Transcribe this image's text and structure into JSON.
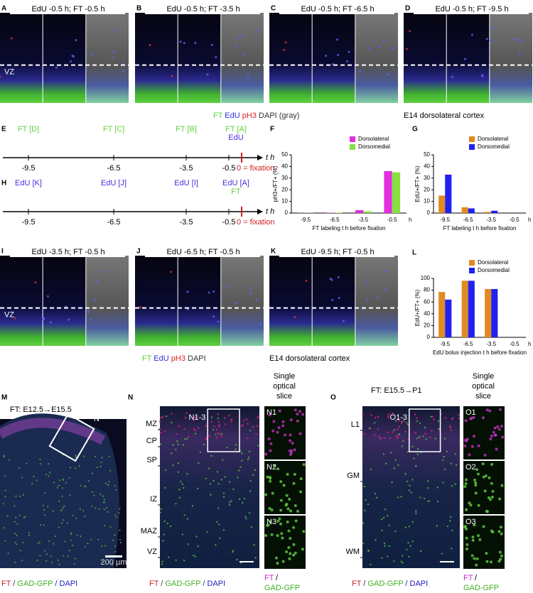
{
  "micro_rows": [
    {
      "panels": [
        {
          "letter": "A",
          "title": "EdU -0.5 h; FT -0.5 h",
          "zone": "VZ"
        },
        {
          "letter": "B",
          "title": "EdU -0.5 h; FT -3.5 h"
        },
        {
          "letter": "C",
          "title": "EdU -0.5 h; FT -6.5 h"
        },
        {
          "letter": "D",
          "title": "EdU -0.5 h; FT -9.5 h"
        }
      ],
      "legend": [
        "FT",
        "EdU",
        "pH3",
        "DAPI (gray)"
      ],
      "region": "E14 dorsolateral cortex"
    },
    {
      "panels": [
        {
          "letter": "I",
          "title": "EdU -3.5 h; FT -0.5 h",
          "zone": "VZ"
        },
        {
          "letter": "J",
          "title": "EdU -6.5 h; FT -0.5 h"
        },
        {
          "letter": "K",
          "title": "EdU -9.5 h; FT -0.5 h"
        }
      ],
      "legend": [
        "FT",
        "EdU",
        "pH3",
        "DAPI"
      ],
      "region": "E14 dorsolateral cortex"
    }
  ],
  "timelines": [
    {
      "letter": "E",
      "ticks": [
        "-9.5",
        "-6.5",
        "-3.5",
        "-0.5"
      ],
      "labels": [
        [
          "FT [D]"
        ],
        [
          "FT [C]"
        ],
        [
          "FT [B]"
        ],
        [
          "FT [A]",
          "EdU"
        ]
      ],
      "axis": "t h",
      "zero": "0 = fixation"
    },
    {
      "letter": "H",
      "ticks": [
        "-9.5",
        "-6.5",
        "-3.5",
        "-0.5"
      ],
      "labels": [
        [
          "EdU [K]"
        ],
        [
          "EdU [J]"
        ],
        [
          "EdU [I]"
        ],
        [
          "EdU [A]",
          "FT"
        ]
      ],
      "axis": "t h",
      "zero": "0 = fixation"
    }
  ],
  "charts": [
    {
      "letter": "F",
      "type": "bar",
      "ylabel": "pH3+/FT+ (%)",
      "xlabel": "FT labeling t h before fixation",
      "categories": [
        "-9.5",
        "-6.5",
        "-3.5",
        "-0.5"
      ],
      "xunit": "h",
      "series": [
        {
          "name": "Dorsolateral",
          "color": "#e030e0",
          "values": [
            0.2,
            0.3,
            2.5,
            36
          ]
        },
        {
          "name": "Dorsomedial",
          "color": "#88e040",
          "values": [
            0.2,
            0.3,
            1.5,
            35
          ]
        }
      ],
      "ylim": [
        0,
        50
      ],
      "yticks": [
        0,
        10,
        20,
        30,
        40,
        50
      ]
    },
    {
      "letter": "G",
      "type": "bar",
      "ylabel": "EdU+/FT+ (%)",
      "xlabel": "FT labeling t h before fixation",
      "categories": [
        "-9.5",
        "-6.5",
        "-3.5",
        "-0.5"
      ],
      "xunit": "h",
      "series": [
        {
          "name": "Dorsolateral",
          "color": "#e08a20",
          "values": [
            15,
            5,
            1,
            0
          ]
        },
        {
          "name": "Dorsomedial",
          "color": "#2020f0",
          "values": [
            33,
            4,
            2,
            0
          ]
        }
      ],
      "ylim": [
        0,
        50
      ],
      "yticks": [
        0,
        10,
        20,
        30,
        40,
        50
      ]
    },
    {
      "letter": "L",
      "type": "bar",
      "ylabel": "EdU+/FT+ (%)",
      "xlabel": "EdU bolus injection t h before fixation",
      "categories": [
        "-9.5",
        "-6.5",
        "-3.5",
        "-0.5"
      ],
      "xunit": "h",
      "series": [
        {
          "name": "Dorsolateral",
          "color": "#e08a20",
          "values": [
            77,
            96,
            82,
            0
          ]
        },
        {
          "name": "Dorsomedial",
          "color": "#2020f0",
          "values": [
            64,
            96,
            82,
            0
          ]
        }
      ],
      "ylim": [
        0,
        100
      ],
      "yticks": [
        0,
        20,
        40,
        60,
        80,
        100
      ]
    }
  ],
  "bottom": {
    "M": {
      "letter": "M",
      "title": "FT: E12.5→E15.5",
      "box": "N",
      "scale": "200 µm",
      "caption": [
        "FT",
        " / ",
        "GAD-GFP",
        " / DAPI"
      ]
    },
    "N": {
      "letter": "N",
      "layers": [
        "MZ",
        "CP",
        "SP",
        "IZ",
        "MAZ",
        "VZ"
      ],
      "box": "N1-3",
      "slice_title": [
        "Single",
        "optical",
        "slice"
      ],
      "slices": [
        "N1",
        "N2",
        "N3"
      ],
      "caption": [
        "FT",
        " / ",
        "GAD-GFP",
        " / DAPI"
      ],
      "slice_caption": [
        "FT",
        " /",
        "GAD-GFP"
      ]
    },
    "O": {
      "letter": "O",
      "title": "FT: E15.5→P1",
      "layers": [
        "L1",
        "GM",
        "WM"
      ],
      "box": "O1-3",
      "slice_title": [
        "Single",
        "optical",
        "slice"
      ],
      "slices": [
        "O1",
        "O2",
        "O3"
      ],
      "caption": [
        "FT",
        " / ",
        "GAD-GFP",
        " / DAPI"
      ],
      "slice_caption": [
        "FT",
        " /",
        "GAD-GFP"
      ]
    }
  }
}
